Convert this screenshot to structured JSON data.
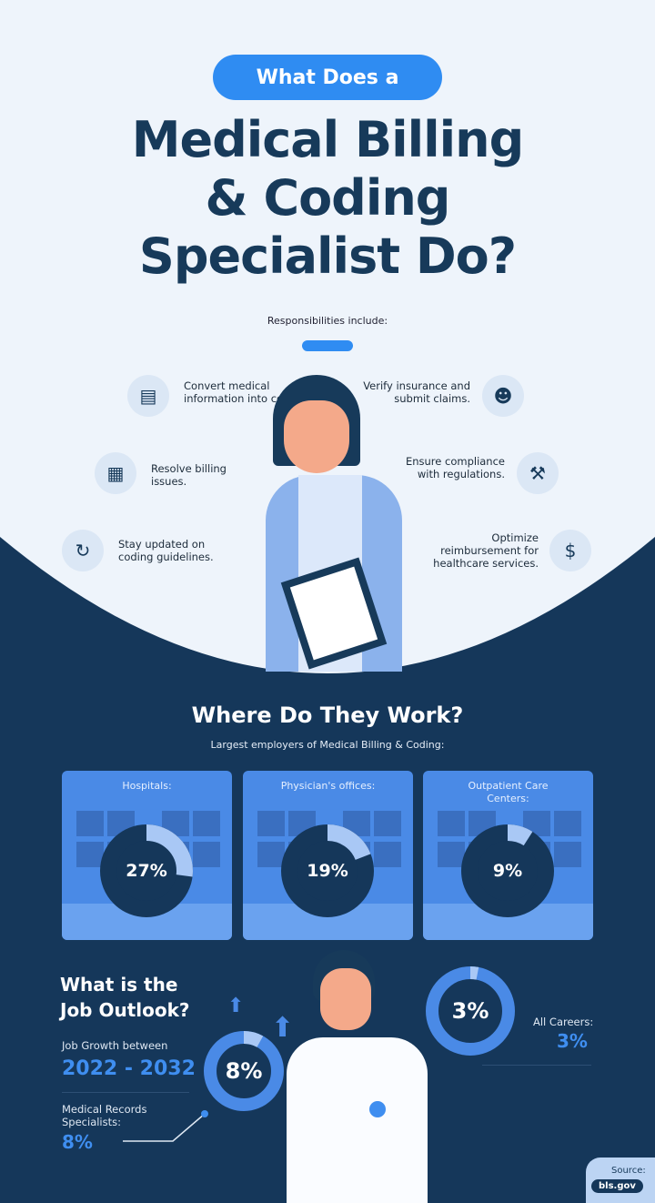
{
  "header": {
    "pill": "What Does a",
    "title_lines": [
      "Medical Billing",
      "& Coding",
      "Specialist Do?"
    ],
    "responsibilities_label": "Responsibilities include:"
  },
  "responsibilities": [
    {
      "text": "Convert medical information into codes.",
      "icon": "medical-document-icon"
    },
    {
      "text": "Resolve billing issues.",
      "icon": "bill-icon"
    },
    {
      "text": "Stay updated on coding guidelines.",
      "icon": "refresh-icon"
    },
    {
      "text": "Verify insurance and submit claims.",
      "icon": "person-shield-icon"
    },
    {
      "text": "Ensure compliance with regulations.",
      "icon": "gavel-icon"
    },
    {
      "text": "Optimize reimbursement for healthcare services.",
      "icon": "money-bag-icon"
    }
  ],
  "work": {
    "title": "Where Do They Work?",
    "subtitle": "Largest employers of Medical Billing & Coding:",
    "cards": [
      {
        "label": "Hospitals:",
        "value": 27,
        "text": "27%"
      },
      {
        "label": "Physician's offices:",
        "value": 19,
        "text": "19%"
      },
      {
        "label": "Outpatient Care Centers:",
        "value": 9,
        "text": "9%"
      }
    ]
  },
  "outlook": {
    "title_l1": "What is the",
    "title_l2": "Job Outlook?",
    "growth_label": "Job Growth between",
    "years": "2022 - 2032",
    "records_label": "Medical Records Specialists:",
    "records_value": "8%",
    "donut_text": "8%",
    "donut_value": 8,
    "all_label": "All Careers:",
    "all_value": "3%",
    "all_donut_text": "3%",
    "all_donut_value": 3
  },
  "source": {
    "label": "Source:",
    "value": "bls.gov"
  },
  "colors": {
    "navy": "#15375a",
    "accent": "#2f8cf2",
    "card": "#4a8ae6",
    "bg": "#eef4fb"
  }
}
